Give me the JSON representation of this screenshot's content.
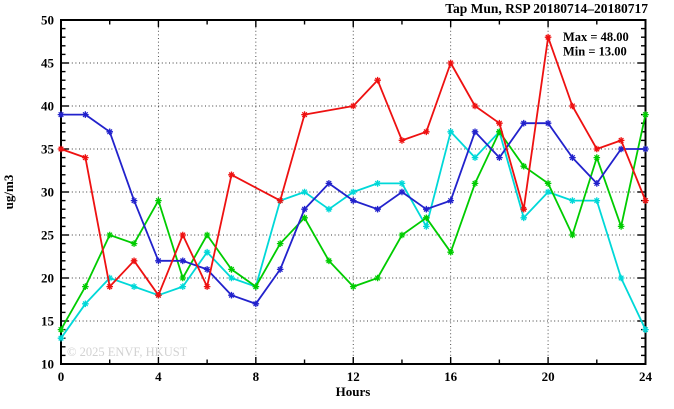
{
  "watermark": "© 2025 ENVF, HKUST",
  "chart_data": {
    "type": "line",
    "title": "Tap Mun, RSP 20180714–20180717",
    "xlabel": "Hours",
    "ylabel": "ug/m3",
    "xlim": [
      0,
      24
    ],
    "ylim": [
      10,
      50
    ],
    "grid": true,
    "legend_position": "none",
    "x_major_ticks": [
      0,
      4,
      8,
      12,
      16,
      20,
      24
    ],
    "x_minor_ticks": [
      2,
      6,
      10,
      14,
      18,
      22
    ],
    "y_major_ticks": [
      10,
      15,
      20,
      25,
      30,
      35,
      40,
      45,
      50
    ],
    "x": [
      0,
      1,
      2,
      3,
      4,
      5,
      6,
      7,
      8,
      9,
      10,
      11,
      12,
      13,
      14,
      15,
      16,
      17,
      18,
      19,
      20,
      21,
      22,
      23,
      24
    ],
    "series": [
      {
        "name": "cyan",
        "color": "#00d8d8",
        "values": [
          13,
          17,
          20,
          19,
          18,
          19,
          23,
          20,
          19,
          29,
          30,
          28,
          30,
          31,
          31,
          26,
          37,
          34,
          37,
          27,
          30,
          29,
          29,
          20,
          14
        ]
      },
      {
        "name": "green",
        "color": "#00cc00",
        "values": [
          14,
          19,
          25,
          24,
          29,
          20,
          25,
          21,
          19,
          24,
          27,
          22,
          19,
          20,
          25,
          27,
          23,
          31,
          37,
          33,
          31,
          25,
          34,
          26,
          39
        ]
      },
      {
        "name": "blue",
        "color": "#2222cc",
        "values": [
          39,
          39,
          37,
          29,
          22,
          22,
          21,
          18,
          17,
          21,
          28,
          31,
          29,
          28,
          30,
          28,
          29,
          37,
          34,
          38,
          38,
          34,
          31,
          35,
          35
        ]
      },
      {
        "name": "red",
        "color": "#ee1111",
        "values": [
          35,
          34,
          19,
          22,
          18,
          25,
          19,
          32,
          null,
          29,
          39,
          null,
          40,
          43,
          36,
          37,
          45,
          40,
          38,
          28,
          48,
          40,
          35,
          36,
          29
        ]
      }
    ],
    "annotations": {
      "max_label": "Max = 48.00",
      "min_label": "Min = 13.00"
    }
  }
}
